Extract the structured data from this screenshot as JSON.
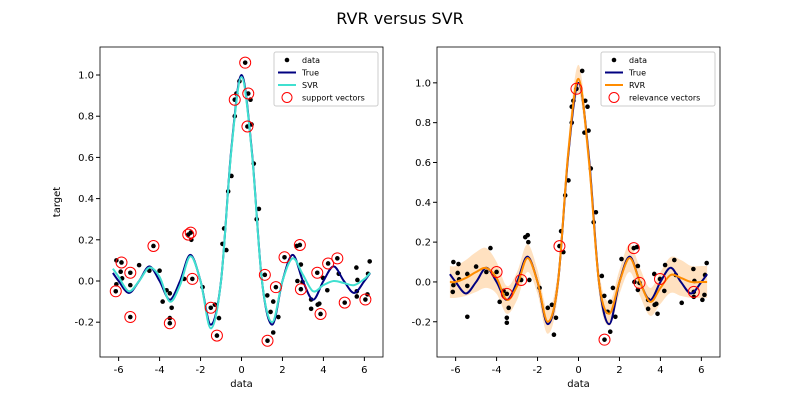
{
  "title": "RVR versus SVR",
  "colors": {
    "data": "#000000",
    "true": "#000080",
    "svr": "#40e0d0",
    "rvr": "#ff8c00",
    "band": "#ffdab0",
    "vectors": "#ff0000"
  },
  "chart_data": [
    {
      "type": "line",
      "xlabel": "data",
      "ylabel": "target",
      "xlim": [
        -6.91,
        6.91
      ],
      "ylim": [
        -0.369,
        1.136
      ],
      "xticks": [
        "-6",
        "-4",
        "-2",
        "0",
        "2",
        "4",
        "6"
      ],
      "yticks": [
        "-0.2",
        "0.0",
        "0.2",
        "0.4",
        "0.6",
        "0.8",
        "1.0"
      ],
      "grid": false,
      "legend": {
        "placement": "top-right",
        "entries": [
          "data",
          "True",
          "SVR",
          "support vectors"
        ]
      },
      "curve_x": [
        -6.28,
        -6,
        -5.5,
        -5,
        -4.5,
        -4,
        -3.5,
        -3,
        -2.5,
        -2,
        -1.5,
        -1,
        -0.5,
        0,
        0.5,
        1,
        1.5,
        2,
        2.5,
        3,
        3.5,
        4,
        4.5,
        5,
        5.5,
        6,
        6.28
      ],
      "series": [
        {
          "name": "True",
          "values": [
            0.039,
            0,
            -0.058,
            0,
            0.071,
            0,
            -0.091,
            0,
            0.127,
            0,
            -0.212,
            0,
            0.637,
            1,
            0.637,
            0,
            -0.212,
            0,
            0.127,
            0,
            -0.091,
            0,
            0.071,
            0,
            -0.058,
            0,
            0.039
          ]
        },
        {
          "name": "SVR",
          "values": [
            0.06,
            0.02,
            -0.05,
            0.0,
            0.065,
            0.02,
            -0.1,
            -0.02,
            0.12,
            0.0,
            -0.23,
            0.0,
            0.63,
            0.99,
            0.63,
            0.0,
            -0.2,
            0.0,
            0.11,
            0.03,
            -0.05,
            -0.02,
            0.0,
            -0.01,
            -0.02,
            0.01,
            0.04
          ]
        }
      ],
      "vectors_name": "support vectors",
      "vectors": [
        [
          -6.14,
          -0.05
        ],
        [
          -5.86,
          0.09
        ],
        [
          -5.43,
          0.04
        ],
        [
          -5.43,
          -0.175
        ],
        [
          -4.3,
          0.17
        ],
        [
          -3.5,
          -0.205
        ],
        [
          -2.6,
          0.225
        ],
        [
          -2.48,
          0.235
        ],
        [
          -2.4,
          0.01
        ],
        [
          -1.5,
          -0.13
        ],
        [
          -1.2,
          -0.265
        ],
        [
          -0.33,
          0.88
        ],
        [
          0.18,
          1.06
        ],
        [
          0.33,
          0.91
        ],
        [
          0.29,
          0.75
        ],
        [
          1.14,
          0.03
        ],
        [
          1.68,
          -0.03
        ],
        [
          1.27,
          -0.29
        ],
        [
          2.1,
          0.115
        ],
        [
          2.85,
          0.175
        ],
        [
          2.9,
          -0.04
        ],
        [
          3.7,
          0.04
        ],
        [
          3.86,
          -0.16
        ],
        [
          4.23,
          0.085
        ],
        [
          4.68,
          0.11
        ],
        [
          5.04,
          -0.105
        ],
        [
          6.05,
          -0.09
        ]
      ]
    },
    {
      "type": "line",
      "xlabel": "data",
      "ylabel": "",
      "xlim": [
        -6.91,
        6.91
      ],
      "ylim": [
        -0.377,
        1.18
      ],
      "xticks": [
        "-6",
        "-4",
        "-2",
        "0",
        "2",
        "4",
        "6"
      ],
      "yticks": [
        "-0.2",
        "0.0",
        "0.2",
        "0.4",
        "0.6",
        "0.8",
        "1.0"
      ],
      "grid": false,
      "legend": {
        "placement": "top-right",
        "entries": [
          "data",
          "True",
          "RVR",
          "relevance vectors"
        ]
      },
      "curve_x": [
        -6.28,
        -6,
        -5.5,
        -5,
        -4.5,
        -4,
        -3.5,
        -3,
        -2.5,
        -2,
        -1.5,
        -1,
        -0.5,
        0,
        0.5,
        1,
        1.5,
        2,
        2.5,
        3,
        3.5,
        4,
        4.5,
        5,
        5.5,
        6,
        6.28
      ],
      "series": [
        {
          "name": "True",
          "values": [
            0.039,
            0,
            -0.058,
            0,
            0.071,
            0,
            -0.091,
            0,
            0.127,
            0,
            -0.212,
            0,
            0.637,
            1,
            0.637,
            0,
            -0.212,
            0,
            0.127,
            0,
            -0.091,
            0,
            0.071,
            0,
            -0.058,
            0,
            0.039
          ]
        },
        {
          "name": "RVR",
          "values": [
            0.0,
            0.0,
            0.02,
            0.05,
            0.07,
            0.02,
            -0.09,
            -0.02,
            0.12,
            0.0,
            -0.2,
            0.0,
            0.65,
            1.02,
            0.62,
            0.0,
            -0.16,
            0.0,
            0.12,
            0.0,
            -0.1,
            -0.03,
            0.035,
            0.02,
            0.0,
            0.0,
            0.0
          ]
        }
      ],
      "rvr_std": [
        0.08,
        0.08,
        0.09,
        0.1,
        0.1,
        0.08,
        0.07,
        0.07,
        0.07,
        0.06,
        0.06,
        0.06,
        0.06,
        0.07,
        0.06,
        0.06,
        0.06,
        0.06,
        0.07,
        0.07,
        0.07,
        0.08,
        0.09,
        0.09,
        0.08,
        0.08,
        0.08
      ],
      "vectors_name": "relevance vectors",
      "vectors": [
        [
          -4.0,
          0.05
        ],
        [
          -3.5,
          -0.06
        ],
        [
          -2.8,
          0.01
        ],
        [
          -0.93,
          0.18
        ],
        [
          -0.1,
          0.97
        ],
        [
          1.27,
          -0.29
        ],
        [
          2.7,
          0.17
        ],
        [
          2.98,
          -0.005
        ],
        [
          3.98,
          0.015
        ],
        [
          5.63,
          -0.05
        ]
      ]
    }
  ],
  "data_points": [
    [
      -6.11,
      0.1
    ],
    [
      -5.86,
      0.09
    ],
    [
      -5.9,
      0.045
    ],
    [
      -5.83,
      0.013
    ],
    [
      -6.11,
      -0.016
    ],
    [
      -6.14,
      -0.05
    ],
    [
      -5.43,
      0.04
    ],
    [
      -5.43,
      -0.02
    ],
    [
      -5.43,
      -0.175
    ],
    [
      -5.0,
      0.077
    ],
    [
      -4.5,
      0.05
    ],
    [
      -4.3,
      0.17
    ],
    [
      -4.0,
      0.05
    ],
    [
      -3.85,
      -0.1
    ],
    [
      -3.66,
      -0.045
    ],
    [
      -3.5,
      -0.06
    ],
    [
      -3.41,
      -0.13
    ],
    [
      -3.5,
      -0.18
    ],
    [
      -3.5,
      -0.205
    ],
    [
      -2.8,
      0.01
    ],
    [
      -2.6,
      0.225
    ],
    [
      -2.48,
      0.235
    ],
    [
      -2.45,
      0.2
    ],
    [
      -2.4,
      0.01
    ],
    [
      -1.9,
      -0.03
    ],
    [
      -1.5,
      -0.13
    ],
    [
      -1.3,
      -0.115
    ],
    [
      -1.2,
      -0.265
    ],
    [
      -1.1,
      -0.18
    ],
    [
      -0.93,
      0.18
    ],
    [
      -0.74,
      0.15
    ],
    [
      -0.85,
      0.255
    ],
    [
      -0.65,
      0.435
    ],
    [
      -0.49,
      0.51
    ],
    [
      -0.33,
      0.8
    ],
    [
      -0.33,
      0.88
    ],
    [
      -0.25,
      0.91
    ],
    [
      -0.1,
      0.97
    ],
    [
      0.18,
      1.06
    ],
    [
      0.33,
      0.91
    ],
    [
      0.44,
      0.88
    ],
    [
      0.29,
      0.75
    ],
    [
      0.49,
      0.76
    ],
    [
      0.6,
      0.57
    ],
    [
      0.74,
      0.3
    ],
    [
      0.85,
      0.35
    ],
    [
      1.14,
      0.03
    ],
    [
      1.26,
      -0.07
    ],
    [
      1.42,
      -0.15
    ],
    [
      1.55,
      -0.1
    ],
    [
      1.68,
      -0.03
    ],
    [
      1.8,
      -0.175
    ],
    [
      1.55,
      -0.25
    ],
    [
      1.27,
      -0.29
    ],
    [
      2.1,
      0.115
    ],
    [
      2.7,
      0.17
    ],
    [
      2.85,
      0.175
    ],
    [
      2.9,
      0.08
    ],
    [
      2.73,
      0.0
    ],
    [
      2.9,
      -0.04
    ],
    [
      2.98,
      -0.005
    ],
    [
      3.4,
      -0.09
    ],
    [
      3.4,
      -0.135
    ],
    [
      3.72,
      -0.115
    ],
    [
      3.8,
      -0.11
    ],
    [
      3.7,
      0.04
    ],
    [
      3.86,
      -0.16
    ],
    [
      3.98,
      0.015
    ],
    [
      4.19,
      -0.045
    ],
    [
      4.23,
      0.085
    ],
    [
      4.68,
      0.11
    ],
    [
      4.75,
      0.035
    ],
    [
      5.04,
      -0.105
    ],
    [
      5.61,
      0.065
    ],
    [
      5.66,
      0.005
    ],
    [
      5.63,
      -0.05
    ],
    [
      5.63,
      -0.075
    ],
    [
      6.05,
      -0.09
    ],
    [
      6.15,
      -0.065
    ],
    [
      6.18,
      0.035
    ],
    [
      6.26,
      0.095
    ]
  ]
}
